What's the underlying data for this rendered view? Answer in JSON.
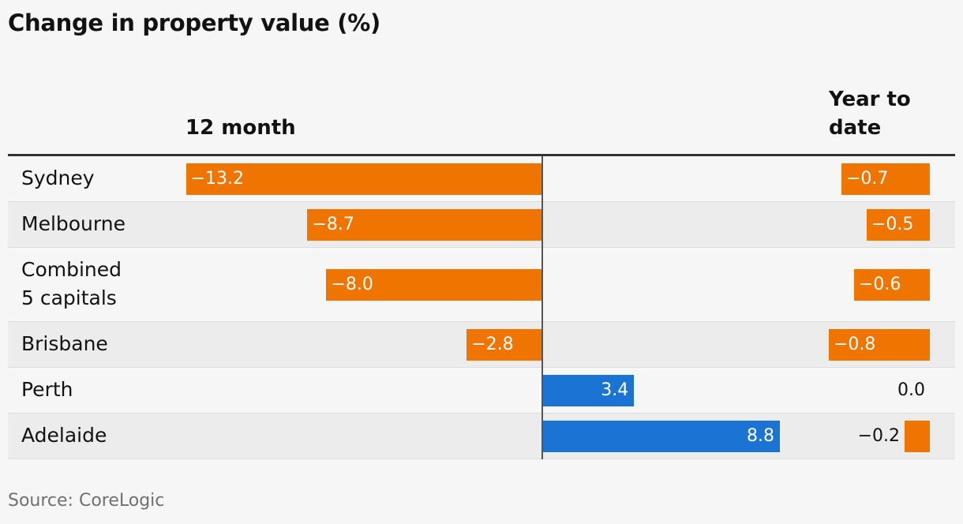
{
  "title": "Change in property value (%)",
  "source": "Source: CoreLogic",
  "colors": {
    "negative": "#f07400",
    "positive": "#1b73d3",
    "background": "#f6f6f6"
  },
  "chart_data": {
    "type": "bar",
    "orientation": "horizontal",
    "categories": [
      "Sydney",
      "Melbourne",
      "Combined\n5 capitals",
      "Brisbane",
      "Perth",
      "Adelaide"
    ],
    "series": [
      {
        "name": "12 month",
        "values": [
          -13.2,
          -8.7,
          -8.0,
          -2.8,
          3.4,
          8.8
        ],
        "labels": [
          "−13.2",
          "−8.7",
          "−8.0",
          "−2.8",
          "3.4",
          "8.8"
        ]
      },
      {
        "name": "Year to date",
        "values": [
          -0.7,
          -0.5,
          -0.6,
          -0.8,
          0.0,
          -0.2
        ],
        "labels": [
          "−0.7",
          "−0.5",
          "−0.6",
          "−0.8",
          "0.0",
          "−0.2"
        ]
      }
    ],
    "column_headers": [
      "12 month",
      "Year to date"
    ]
  }
}
